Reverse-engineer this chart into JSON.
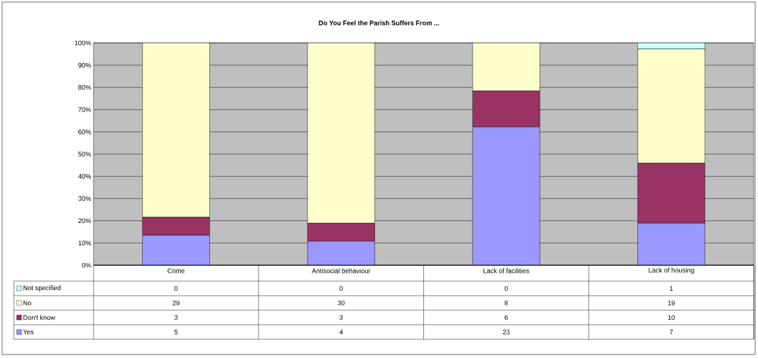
{
  "chart_data": {
    "type": "bar",
    "stacked": true,
    "title": "Do You Feel the Parish Suffers From ...",
    "categories": [
      "Crime",
      "Antisocial behaviour",
      "Lack of facilities",
      "Lack of housing"
    ],
    "series": [
      {
        "name": "Yes",
        "color": "#9999ff",
        "values": [
          13.5,
          10.8,
          62.2,
          18.9
        ]
      },
      {
        "name": "Don't know",
        "color": "#993366",
        "values": [
          8.1,
          8.1,
          16.2,
          27.0
        ]
      },
      {
        "name": "No",
        "color": "#ffffcc",
        "values": [
          78.4,
          81.1,
          21.6,
          51.4
        ]
      },
      {
        "name": "Not specified",
        "color": "#ccffff",
        "values": [
          0,
          0,
          0,
          2.7
        ]
      }
    ],
    "annotations": [
      "0",
      "0",
      "0",
      "1",
      "29",
      "30",
      "8",
      "19",
      "3",
      "3",
      "6",
      "10",
      "5",
      "4",
      "23",
      "7"
    ],
    "ylim": [
      0,
      100
    ],
    "yticks": [
      {
        "value": 0,
        "label": "0%"
      },
      {
        "value": 10,
        "label": "10%"
      },
      {
        "value": 20,
        "label": "20%"
      },
      {
        "value": 30,
        "label": "30%"
      },
      {
        "value": 40,
        "label": "40%"
      },
      {
        "value": 50,
        "label": "50%"
      },
      {
        "value": 60,
        "label": "60%"
      },
      {
        "value": 70,
        "label": "70%"
      },
      {
        "value": 80,
        "label": "80%"
      },
      {
        "value": 90,
        "label": "90%"
      },
      {
        "value": 100,
        "label": "100%"
      }
    ],
    "grid": "y",
    "legend": "bottom left"
  }
}
